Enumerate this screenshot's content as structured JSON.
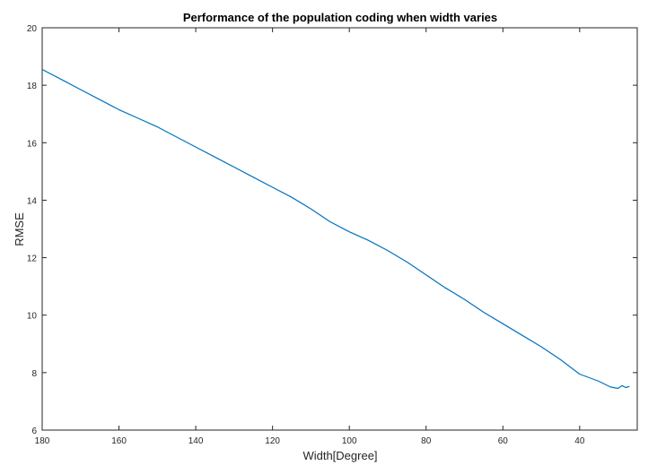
{
  "chart_data": {
    "type": "line",
    "title": "Performance of the population coding when width varies",
    "xlabel": "Width[Degree]",
    "ylabel": "RMSE",
    "xlim": [
      180,
      25
    ],
    "x_reversed": true,
    "ylim": [
      6,
      20
    ],
    "x_ticks": [
      180,
      160,
      140,
      120,
      100,
      80,
      60,
      40
    ],
    "y_ticks": [
      6,
      8,
      10,
      12,
      14,
      16,
      18,
      20
    ],
    "grid": false,
    "box": true,
    "series": [
      {
        "color": "#0072BD",
        "x": [
          180,
          175,
          170,
          165,
          160,
          155,
          150,
          145,
          140,
          135,
          130,
          125,
          120,
          115,
          110,
          105,
          100,
          95,
          90,
          85,
          80,
          75,
          70,
          65,
          60,
          55,
          50,
          45,
          40,
          35,
          32,
          30,
          29,
          28,
          27
        ],
        "y": [
          18.55,
          18.2,
          17.85,
          17.5,
          17.15,
          16.85,
          16.55,
          16.2,
          15.85,
          15.5,
          15.15,
          14.8,
          14.45,
          14.1,
          13.7,
          13.25,
          12.9,
          12.6,
          12.25,
          11.85,
          11.4,
          10.95,
          10.55,
          10.1,
          9.7,
          9.3,
          8.9,
          8.45,
          7.95,
          7.7,
          7.5,
          7.45,
          7.55,
          7.48,
          7.52
        ]
      }
    ]
  }
}
